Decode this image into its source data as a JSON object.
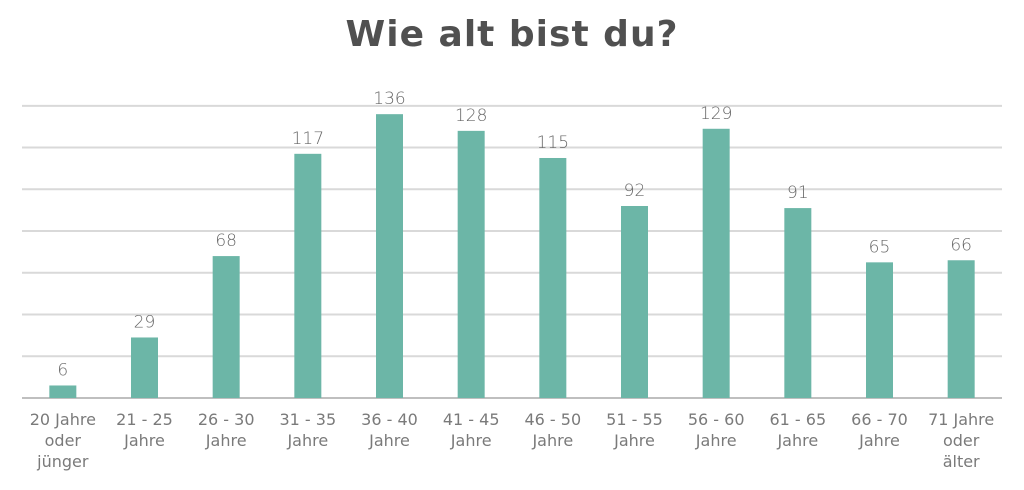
{
  "chart_data": {
    "type": "bar",
    "title": "Wie alt bist du?",
    "categories": [
      "20 Jahre oder jünger",
      "21 - 25 Jahre",
      "26 - 30 Jahre",
      "31 - 35 Jahre",
      "36 - 40 Jahre",
      "41 - 45 Jahre",
      "46 - 50 Jahre",
      "51 - 55 Jahre",
      "56 - 60 Jahre",
      "61 - 65 Jahre",
      "66 - 70 Jahre",
      "71 Jahre oder älter"
    ],
    "category_lines": [
      [
        "20 Jahre",
        "oder",
        "jünger"
      ],
      [
        "21 - 25",
        "Jahre"
      ],
      [
        "26 - 30",
        "Jahre"
      ],
      [
        "31 - 35",
        "Jahre"
      ],
      [
        "36 - 40",
        "Jahre"
      ],
      [
        "41 - 45",
        "Jahre"
      ],
      [
        "46 - 50",
        "Jahre"
      ],
      [
        "51 - 55",
        "Jahre"
      ],
      [
        "56 - 60",
        "Jahre"
      ],
      [
        "61 - 65",
        "Jahre"
      ],
      [
        "66 - 70",
        "Jahre"
      ],
      [
        "71 Jahre",
        "oder",
        "älter"
      ]
    ],
    "values": [
      6,
      29,
      68,
      117,
      136,
      128,
      115,
      92,
      129,
      91,
      65,
      66
    ],
    "xlabel": "",
    "ylabel": "",
    "ylim": [
      0,
      140
    ],
    "grid": true,
    "y_axis_labels_shown": false,
    "data_labels_shown": true,
    "bar_color": "#6cb6a7",
    "grid_color": "#d9d9d9"
  }
}
